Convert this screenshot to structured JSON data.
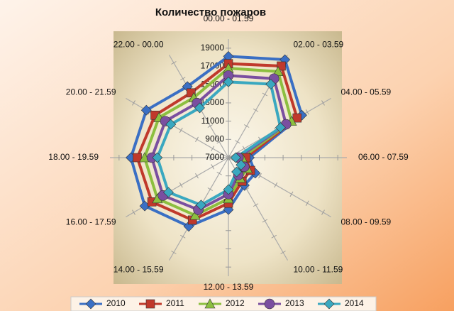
{
  "chart_data": {
    "type": "radar",
    "title": "Количество пожаров",
    "categories": [
      "00.00 - 01.59",
      "02.00 - 03.59",
      "04.00 - 05.59",
      "06.00 - 07.59",
      "08.00 - 09.59",
      "10.00 - 11.59",
      "12.00 - 13.59",
      "14.00 - 15.59",
      "16.00 - 17.59",
      "18.00 - 19.59",
      "20.00 - 21.59",
      "22.00 - 00.00"
    ],
    "series": [
      {
        "name": "2010",
        "color": "#3a6fc4",
        "values": [
          18100,
          19400,
          16300,
          9300,
          10400,
          10500,
          12700,
          15700,
          17600,
          17700,
          17400,
          16000
        ]
      },
      {
        "name": "2011",
        "color": "#c0392b",
        "values": [
          17300,
          18600,
          15700,
          8900,
          9800,
          10000,
          12000,
          14900,
          16700,
          17000,
          16300,
          15200
        ]
      },
      {
        "name": "2012",
        "color": "#8cbf3f",
        "values": [
          16800,
          17900,
          15000,
          8500,
          9400,
          9600,
          11500,
          14300,
          16000,
          16200,
          15800,
          14600
        ]
      },
      {
        "name": "2013",
        "color": "#7a4fa0",
        "values": [
          16000,
          17000,
          14300,
          8100,
          9000,
          9200,
          11000,
          13600,
          15300,
          15400,
          15000,
          13900
        ]
      },
      {
        "name": "2014",
        "color": "#3aa8c0",
        "values": [
          15300,
          16300,
          13600,
          7800,
          8600,
          8800,
          10500,
          13000,
          14600,
          14800,
          14300,
          13300
        ]
      }
    ],
    "ylim": [
      7000,
      20000
    ],
    "yticks": [
      7000,
      9000,
      11000,
      13000,
      15000,
      17000,
      19000
    ],
    "grid": true,
    "legend": "bottom"
  }
}
